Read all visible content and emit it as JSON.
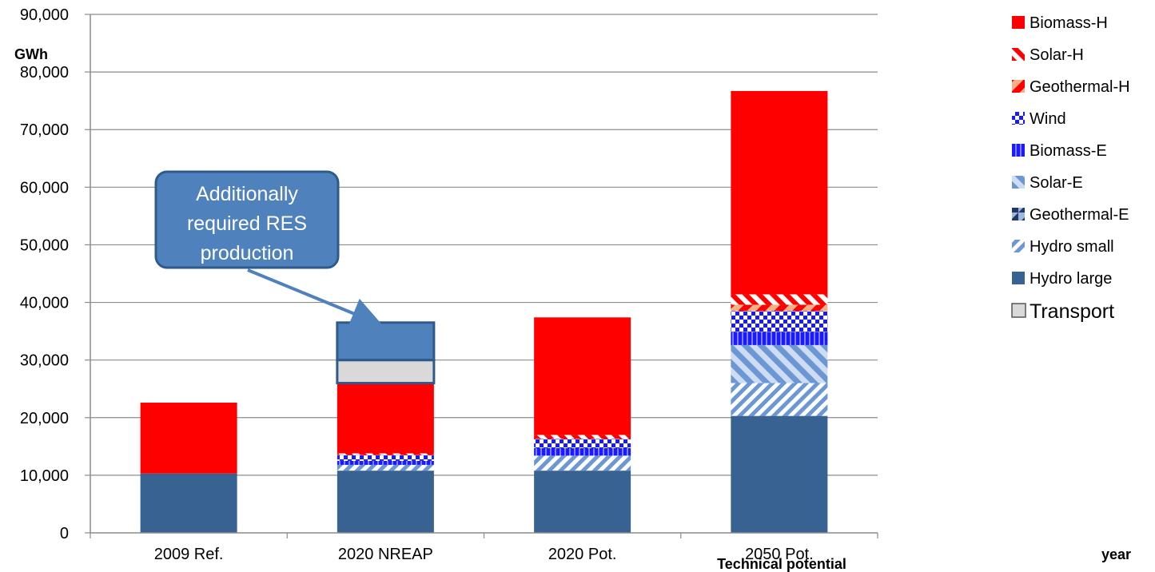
{
  "chart_data": {
    "type": "bar",
    "stacked": true,
    "unit_label": "GWh",
    "xlabel": "year",
    "ylim": [
      0,
      90000
    ],
    "y_ticks": [
      0,
      10000,
      20000,
      30000,
      40000,
      50000,
      60000,
      70000,
      80000,
      90000
    ],
    "y_tick_labels": [
      "0",
      "10,000",
      "20,000",
      "30,000",
      "40,000",
      "50,000",
      "60,000",
      "70,000",
      "80,000",
      "90,000"
    ],
    "grid": true,
    "legend_position": "right",
    "categories": [
      "2009 Ref.",
      "2020 NREAP",
      "2020 Pot.",
      "2050 Pot."
    ],
    "category_note": "Technical potential",
    "series": [
      {
        "name": "Hydro large",
        "color": "#386291",
        "pattern": "solid",
        "values": [
          10300,
          10800,
          10800,
          20300
        ]
      },
      {
        "name": "Hydro small",
        "color": "#6b97d4",
        "pattern": "diag-down",
        "values": [
          0,
          1000,
          2600,
          5700
        ]
      },
      {
        "name": "Geothermal-E",
        "color": "#1f3864",
        "pattern": "split",
        "values": [
          0,
          0,
          0,
          0
        ]
      },
      {
        "name": "Solar-E",
        "color": "#6b97d4",
        "pattern": "diag-up",
        "values": [
          0,
          0,
          0,
          6600
        ]
      },
      {
        "name": "Biomass-E",
        "color": "#1a1aff",
        "pattern": "vertical",
        "values": [
          0,
          700,
          1300,
          2300
        ]
      },
      {
        "name": "Wind",
        "color": "#1a1aff",
        "pattern": "checker",
        "values": [
          0,
          1000,
          1600,
          3600
        ]
      },
      {
        "name": "Geothermal-H",
        "color": "#f4b183",
        "pattern": "diag-down-red",
        "values": [
          0,
          0,
          0,
          1100
        ]
      },
      {
        "name": "Solar-H",
        "color": "#ff0000",
        "pattern": "diag-up-red",
        "values": [
          0,
          300,
          700,
          1800
        ]
      },
      {
        "name": "Biomass-H",
        "color": "#ff0000",
        "pattern": "solid",
        "values": [
          12300,
          12300,
          20400,
          35300
        ]
      },
      {
        "name": "Transport",
        "color": "#d9d9d9",
        "pattern": "solid",
        "values": [
          0,
          4000,
          0,
          0
        ]
      }
    ],
    "additional": {
      "category": "2020 NREAP",
      "from": 30000,
      "to": 36500,
      "color": "#4f81bd"
    },
    "annotation": "Additionally required RES production"
  }
}
